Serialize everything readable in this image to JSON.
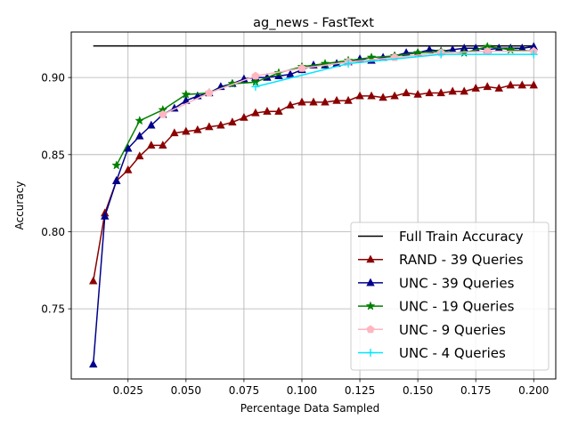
{
  "chart_data": {
    "type": "line",
    "title": "ag_news - FastText",
    "xlabel": "Percentage Data Sampled",
    "ylabel": "Accuracy",
    "xlim": [
      0.0005,
      0.2095
    ],
    "ylim": [
      0.7045,
      0.9295
    ],
    "xticks": [
      0.025,
      0.05,
      0.075,
      0.1,
      0.125,
      0.15,
      0.175,
      0.2
    ],
    "xtick_labels": [
      "0.025",
      "0.050",
      "0.075",
      "0.100",
      "0.125",
      "0.150",
      "0.175",
      "0.200"
    ],
    "yticks": [
      0.75,
      0.8,
      0.85,
      0.9
    ],
    "ytick_labels": [
      "0.75",
      "0.80",
      "0.85",
      "0.90"
    ],
    "grid": true,
    "legend_position": "lower-right",
    "series": [
      {
        "name": "Full Train Accuracy",
        "color": "#000000",
        "marker": "none",
        "x": [
          0.01,
          0.2
        ],
        "y": [
          0.9205,
          0.9205
        ]
      },
      {
        "name": "RAND - 39 Queries",
        "color": "#8b0000",
        "marker": "triangle",
        "x": [
          0.01,
          0.015,
          0.02,
          0.025,
          0.03,
          0.035,
          0.04,
          0.045,
          0.05,
          0.055,
          0.06,
          0.065,
          0.07,
          0.075,
          0.08,
          0.085,
          0.09,
          0.095,
          0.1,
          0.105,
          0.11,
          0.115,
          0.12,
          0.125,
          0.13,
          0.135,
          0.14,
          0.145,
          0.15,
          0.155,
          0.16,
          0.165,
          0.17,
          0.175,
          0.18,
          0.185,
          0.19,
          0.195,
          0.2
        ],
        "y": [
          0.768,
          0.812,
          0.833,
          0.84,
          0.849,
          0.856,
          0.856,
          0.864,
          0.865,
          0.866,
          0.868,
          0.869,
          0.871,
          0.874,
          0.877,
          0.878,
          0.878,
          0.882,
          0.884,
          0.884,
          0.884,
          0.885,
          0.885,
          0.888,
          0.888,
          0.887,
          0.888,
          0.89,
          0.889,
          0.89,
          0.89,
          0.891,
          0.891,
          0.893,
          0.894,
          0.893,
          0.895,
          0.895,
          0.895
        ]
      },
      {
        "name": "UNC - 39 Queries",
        "color": "#00008b",
        "marker": "triangle",
        "x": [
          0.01,
          0.015,
          0.02,
          0.025,
          0.03,
          0.035,
          0.04,
          0.045,
          0.05,
          0.055,
          0.06,
          0.065,
          0.07,
          0.075,
          0.08,
          0.085,
          0.09,
          0.095,
          0.1,
          0.105,
          0.11,
          0.115,
          0.12,
          0.125,
          0.13,
          0.135,
          0.14,
          0.145,
          0.15,
          0.155,
          0.16,
          0.165,
          0.17,
          0.175,
          0.18,
          0.185,
          0.19,
          0.195,
          0.2
        ],
        "y": [
          0.714,
          0.81,
          0.833,
          0.854,
          0.862,
          0.869,
          0.876,
          0.88,
          0.885,
          0.888,
          0.89,
          0.894,
          0.896,
          0.899,
          0.9,
          0.9,
          0.901,
          0.902,
          0.905,
          0.908,
          0.908,
          0.909,
          0.91,
          0.912,
          0.911,
          0.913,
          0.914,
          0.916,
          0.916,
          0.918,
          0.917,
          0.918,
          0.919,
          0.919,
          0.918,
          0.919,
          0.919,
          0.919,
          0.92
        ]
      },
      {
        "name": "UNC - 19 Queries",
        "color": "#008000",
        "marker": "star",
        "x": [
          0.02,
          0.03,
          0.04,
          0.05,
          0.06,
          0.07,
          0.08,
          0.09,
          0.1,
          0.11,
          0.12,
          0.13,
          0.14,
          0.15,
          0.16,
          0.17,
          0.18,
          0.19,
          0.2
        ],
        "y": [
          0.843,
          0.872,
          0.879,
          0.889,
          0.89,
          0.896,
          0.897,
          0.903,
          0.907,
          0.909,
          0.911,
          0.913,
          0.914,
          0.916,
          0.917,
          0.916,
          0.92,
          0.918,
          0.917
        ]
      },
      {
        "name": "UNC - 9 Queries",
        "color": "#ffb6c1",
        "marker": "pentagon",
        "x": [
          0.04,
          0.06,
          0.08,
          0.1,
          0.12,
          0.14,
          0.16,
          0.18,
          0.2
        ],
        "y": [
          0.876,
          0.89,
          0.901,
          0.906,
          0.91,
          0.913,
          0.916,
          0.917,
          0.917
        ]
      },
      {
        "name": "UNC - 4 Queries",
        "color": "#00e5ff",
        "marker": "plus",
        "x": [
          0.08,
          0.12,
          0.16,
          0.2
        ],
        "y": [
          0.894,
          0.909,
          0.915,
          0.915
        ]
      }
    ]
  }
}
